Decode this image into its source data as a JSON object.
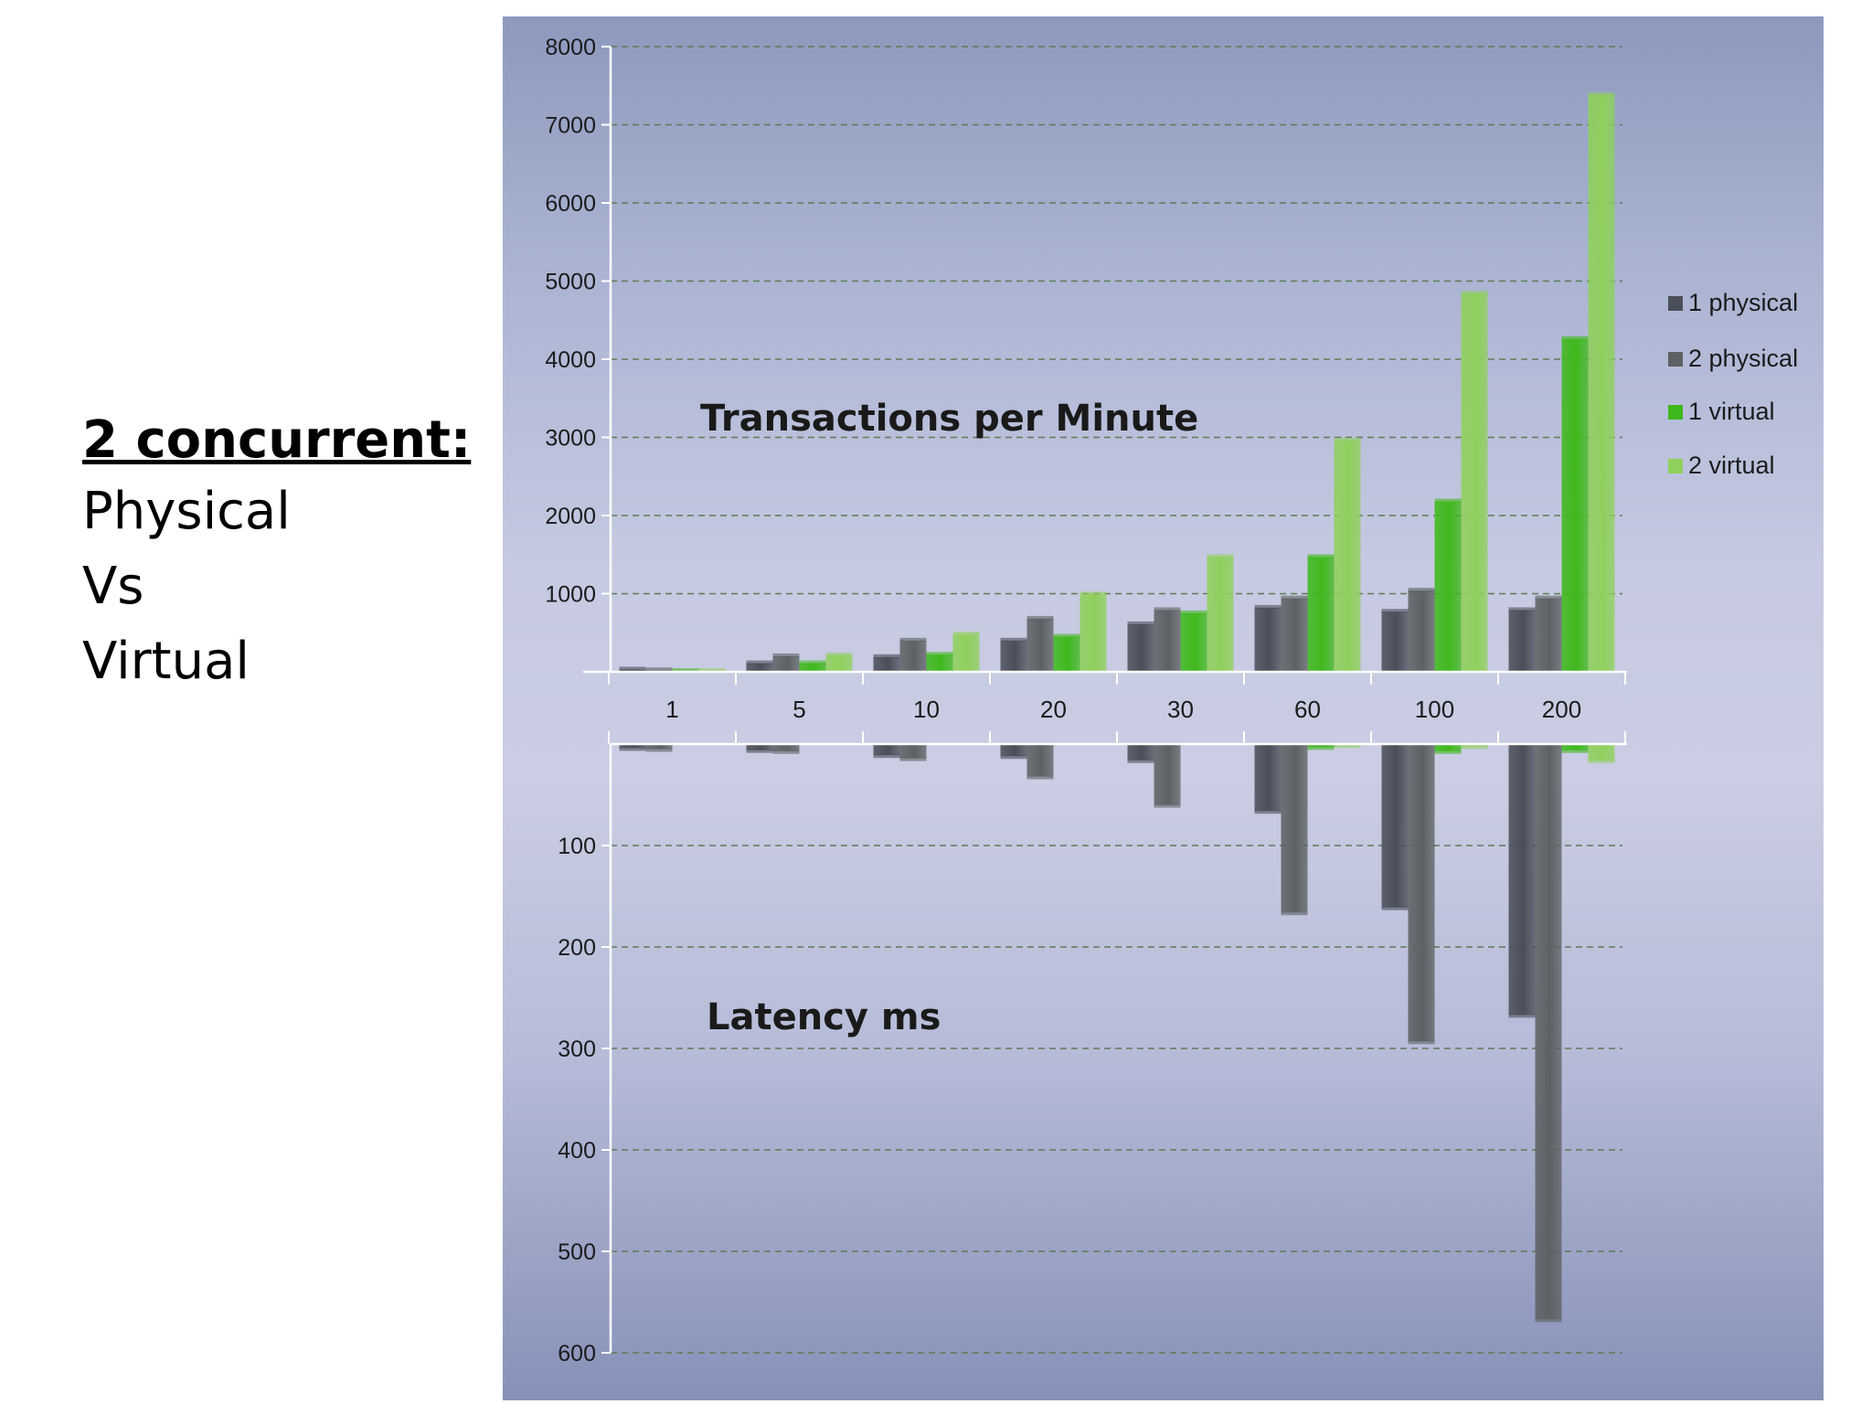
{
  "slide": {
    "heading": "2 concurrent:",
    "lines": [
      "Physical",
      "Vs",
      "Virtual"
    ]
  },
  "colors": {
    "1 physical": "#4a4f59",
    "2 physical": "#5e6163",
    "1 virtual": "#3fb81c",
    "2 virtual": "#8fd05c",
    "gridline": "#5f7a55",
    "axis": "#ffffff"
  },
  "chart_data": [
    {
      "type": "bar",
      "title": "Transactions per Minute",
      "xlabel": "",
      "ylabel": "",
      "categories": [
        "1",
        "5",
        "10",
        "20",
        "30",
        "60",
        "100",
        "200"
      ],
      "series": [
        {
          "name": "1 physical",
          "values": [
            30,
            110,
            190,
            400,
            610,
            820,
            770,
            790
          ]
        },
        {
          "name": "2 physical",
          "values": [
            20,
            200,
            400,
            680,
            790,
            940,
            1040,
            940
          ]
        },
        {
          "name": "1 virtual",
          "values": [
            10,
            110,
            220,
            450,
            750,
            1470,
            2180,
            4260
          ]
        },
        {
          "name": "2 virtual",
          "values": [
            10,
            210,
            480,
            990,
            1470,
            2960,
            4840,
            7380
          ]
        }
      ],
      "yticks": [
        "1000",
        "2000",
        "3000",
        "4000",
        "5000",
        "6000",
        "7000",
        "8000"
      ],
      "ylim": [
        0,
        8000
      ],
      "grid": true,
      "legend": "right"
    },
    {
      "type": "bar",
      "title": "Latency ms",
      "xlabel": "",
      "ylabel": "",
      "orientation": "inverted",
      "categories": [
        "1",
        "5",
        "10",
        "20",
        "30",
        "60",
        "100",
        "200"
      ],
      "series": [
        {
          "name": "1 physical",
          "values": [
            4,
            6,
            11,
            12,
            16,
            66,
            161,
            267
          ]
        },
        {
          "name": "2 physical",
          "values": [
            5,
            7,
            14,
            32,
            60,
            166,
            293,
            567
          ]
        },
        {
          "name": "1 virtual",
          "values": [
            0,
            0,
            0,
            0,
            0,
            3,
            7,
            6
          ]
        },
        {
          "name": "2 virtual",
          "values": [
            0,
            0,
            0,
            0,
            0,
            1,
            2,
            16
          ]
        }
      ],
      "yticks": [
        "100",
        "200",
        "300",
        "400",
        "500",
        "600"
      ],
      "ylim": [
        0,
        600
      ],
      "grid": true
    }
  ]
}
